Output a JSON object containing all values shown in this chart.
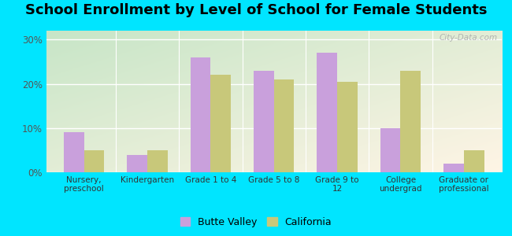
{
  "title": "School Enrollment by Level of School for Female Students",
  "categories": [
    "Nursery,\npreschool",
    "Kindergarten",
    "Grade 1 to 4",
    "Grade 5 to 8",
    "Grade 9 to\n12",
    "College\nundergrad",
    "Graduate or\nprofessional"
  ],
  "butte_valley": [
    9.0,
    4.0,
    26.0,
    23.0,
    27.0,
    10.0,
    2.0
  ],
  "california": [
    5.0,
    5.0,
    22.0,
    21.0,
    20.5,
    23.0,
    5.0
  ],
  "butte_color": "#c9a0dc",
  "california_color": "#c8c87a",
  "background_outer": "#00e5ff",
  "title_fontsize": 13,
  "ylim": [
    0,
    32
  ],
  "yticks": [
    0,
    10,
    20,
    30
  ],
  "ytick_labels": [
    "0%",
    "10%",
    "20%",
    "30%"
  ],
  "watermark_text": "City-Data.com",
  "legend_labels": [
    "Butte Valley",
    "California"
  ]
}
